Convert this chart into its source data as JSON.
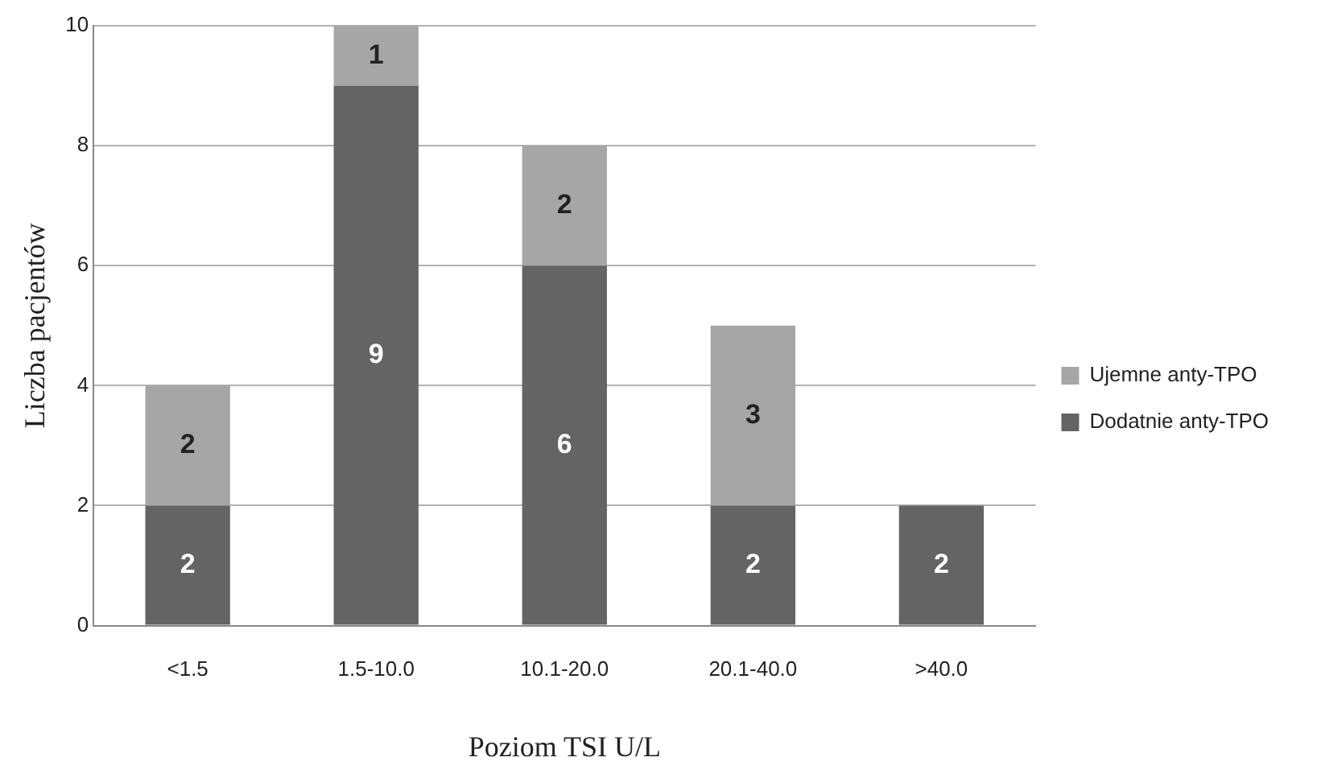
{
  "chart_data": {
    "type": "bar",
    "stacked": true,
    "xlabel": "Poziom TSI U/L",
    "ylabel": "Liczba pacjentów",
    "categories": [
      "<1.5",
      "1.5-10.0",
      "10.1-20.0",
      "20.1-40.0",
      ">40.0"
    ],
    "series": [
      {
        "name": "Dodatnie anty-TPO",
        "color": "#646464",
        "values": [
          2,
          9,
          6,
          2,
          2
        ]
      },
      {
        "name": "Ujemne anty-TPO",
        "color": "#a6a6a6",
        "values": [
          2,
          1,
          2,
          3,
          null
        ]
      }
    ],
    "ylim": [
      0,
      10
    ],
    "yticks": [
      0,
      2,
      4,
      6,
      8,
      10
    ],
    "grid": "y",
    "legend": "right",
    "data_labels": true
  }
}
